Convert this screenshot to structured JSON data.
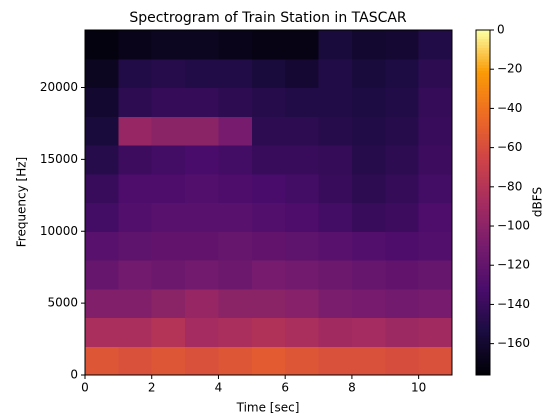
{
  "chart_data": {
    "type": "heatmap",
    "title": "Spectrogram of Train Station in TASCAR",
    "x_label": "Time [sec]",
    "y_label": "Frequency [Hz]",
    "colorbar_label": "dBFS",
    "colormap": "inferno",
    "x_bins": [
      0,
      1,
      2,
      3,
      4,
      5,
      6,
      7,
      8,
      9,
      10,
      11
    ],
    "y_bins": [
      0,
      2000,
      4000,
      6000,
      8000,
      10000,
      12000,
      14000,
      16000,
      18000,
      20000,
      22000,
      24000
    ],
    "z": [
      [
        -55,
        -58,
        -55,
        -58,
        -55,
        -52,
        -55,
        -58,
        -58,
        -60,
        -58
      ],
      [
        -85,
        -85,
        -80,
        -88,
        -85,
        -82,
        -85,
        -90,
        -88,
        -92,
        -90
      ],
      [
        -105,
        -105,
        -100,
        -95,
        -100,
        -100,
        -102,
        -108,
        -110,
        -112,
        -110
      ],
      [
        -118,
        -112,
        -115,
        -112,
        -115,
        -110,
        -112,
        -115,
        -118,
        -120,
        -118
      ],
      [
        -125,
        -122,
        -120,
        -120,
        -118,
        -120,
        -122,
        -125,
        -128,
        -130,
        -128
      ],
      [
        -135,
        -128,
        -125,
        -125,
        -125,
        -128,
        -130,
        -135,
        -140,
        -138,
        -130
      ],
      [
        -140,
        -130,
        -130,
        -128,
        -130,
        -132,
        -135,
        -140,
        -145,
        -142,
        -135
      ],
      [
        -148,
        -138,
        -135,
        -132,
        -135,
        -140,
        -140,
        -142,
        -148,
        -145,
        -138
      ],
      [
        -155,
        -95,
        -100,
        -100,
        -110,
        -145,
        -145,
        -148,
        -150,
        -148,
        -140
      ],
      [
        -160,
        -145,
        -142,
        -142,
        -145,
        -148,
        -150,
        -150,
        -152,
        -150,
        -142
      ],
      [
        -165,
        -150,
        -148,
        -150,
        -150,
        -155,
        -158,
        -150,
        -155,
        -152,
        -145
      ],
      [
        -172,
        -168,
        -165,
        -165,
        -168,
        -170,
        -170,
        -155,
        -160,
        -158,
        -150
      ]
    ],
    "xlim": [
      0,
      11
    ],
    "xticks": [
      0,
      2,
      4,
      6,
      8,
      10
    ],
    "ylim": [
      0,
      24000
    ],
    "yticks": [
      0,
      5000,
      10000,
      15000,
      20000
    ],
    "clim": [
      -176,
      0
    ],
    "cticks": [
      0,
      {
        "value": -20,
        "label": "−20"
      },
      {
        "value": -40,
        "label": "−40"
      },
      {
        "value": -60,
        "label": "−60"
      },
      {
        "value": -80,
        "label": "−80"
      },
      {
        "value": -100,
        "label": "−100"
      },
      {
        "value": -120,
        "label": "−120"
      },
      {
        "value": -140,
        "label": "−140"
      },
      {
        "value": -160,
        "label": "−160"
      }
    ]
  }
}
